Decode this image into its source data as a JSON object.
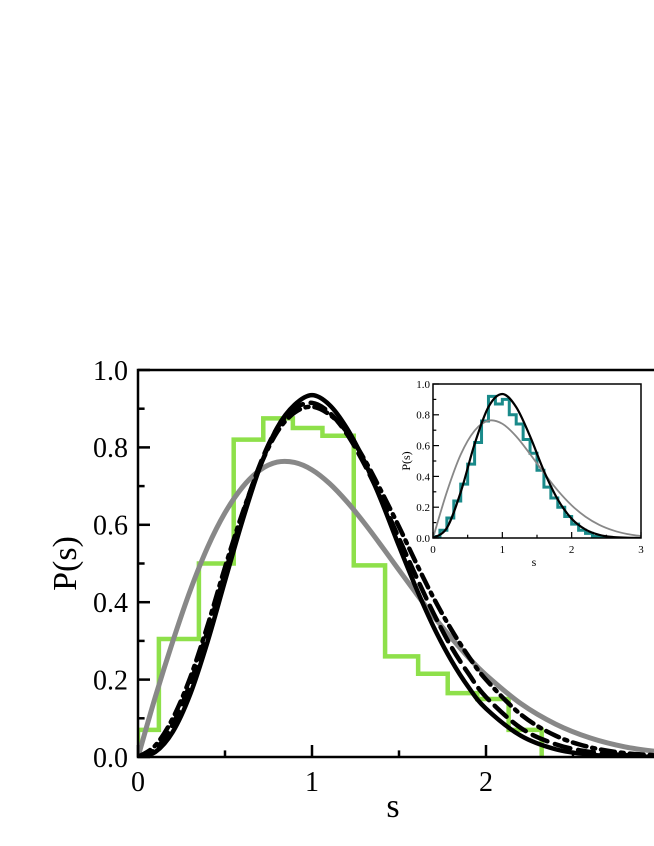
{
  "chart_data": [
    {
      "type": "line",
      "title": "",
      "xlabel": "s",
      "ylabel": "P(s)",
      "xlim": [
        0,
        3
      ],
      "ylim": [
        0,
        1.0
      ],
      "xticks": [
        0,
        1,
        2
      ],
      "xtick_labels": [
        "0",
        "1",
        "2"
      ],
      "yticks": [
        0.0,
        0.2,
        0.4,
        0.6,
        0.8,
        1.0
      ],
      "ytick_labels": [
        "0.0",
        "0.2",
        "0.4",
        "0.6",
        "0.8",
        "1.0"
      ],
      "histogram": {
        "color": "#8ee04a",
        "edges": [
          0,
          0.12,
          0.35,
          0.55,
          0.72,
          0.89,
          1.06,
          1.24,
          1.42,
          1.61,
          1.78,
          1.95,
          2.13,
          2.32
        ],
        "values": [
          0.07,
          0.305,
          0.5,
          0.82,
          0.875,
          0.85,
          0.83,
          0.495,
          0.26,
          0.215,
          0.165,
          0.15,
          0.07
        ]
      },
      "series": [
        {
          "style": "solid-gray",
          "color": "#888888",
          "x": [
            0,
            0.1,
            0.2,
            0.3,
            0.4,
            0.5,
            0.6,
            0.7,
            0.8,
            0.9,
            1.0,
            1.1,
            1.2,
            1.3,
            1.4,
            1.5,
            1.6,
            1.7,
            1.8,
            1.9,
            2.0,
            2.2,
            2.4,
            2.6,
            2.8,
            3.0
          ],
          "y": [
            0,
            0.156,
            0.299,
            0.43,
            0.542,
            0.631,
            0.697,
            0.741,
            0.762,
            0.761,
            0.742,
            0.707,
            0.66,
            0.605,
            0.545,
            0.483,
            0.422,
            0.363,
            0.308,
            0.257,
            0.212,
            0.138,
            0.085,
            0.049,
            0.026,
            0.013
          ]
        },
        {
          "style": "solid-black",
          "color": "#000000",
          "x": [
            0,
            0.1,
            0.2,
            0.3,
            0.4,
            0.5,
            0.6,
            0.7,
            0.8,
            0.9,
            1.0,
            1.1,
            1.2,
            1.3,
            1.4,
            1.5,
            1.6,
            1.7,
            1.8,
            1.9,
            2.0,
            2.2,
            2.4,
            2.6,
            2.8,
            3.0
          ],
          "y": [
            0,
            0.013,
            0.065,
            0.162,
            0.298,
            0.455,
            0.61,
            0.748,
            0.851,
            0.91,
            0.935,
            0.91,
            0.85,
            0.765,
            0.66,
            0.545,
            0.435,
            0.335,
            0.25,
            0.18,
            0.125,
            0.055,
            0.02,
            0.006,
            0.002,
            0.0
          ]
        },
        {
          "style": "dashed-black",
          "color": "#000000",
          "x": [
            0,
            0.1,
            0.2,
            0.3,
            0.4,
            0.5,
            0.6,
            0.7,
            0.8,
            0.9,
            1.0,
            1.1,
            1.2,
            1.3,
            1.4,
            1.5,
            1.6,
            1.7,
            1.8,
            1.9,
            2.0,
            2.2,
            2.4,
            2.6,
            2.8,
            3.0
          ],
          "y": [
            0,
            0.02,
            0.085,
            0.19,
            0.325,
            0.475,
            0.625,
            0.755,
            0.85,
            0.9,
            0.915,
            0.89,
            0.835,
            0.757,
            0.665,
            0.565,
            0.465,
            0.37,
            0.285,
            0.215,
            0.155,
            0.075,
            0.033,
            0.013,
            0.005,
            0.002
          ]
        },
        {
          "style": "dashdot-black",
          "color": "#000000",
          "x": [
            0,
            0.1,
            0.2,
            0.3,
            0.4,
            0.5,
            0.6,
            0.7,
            0.8,
            0.9,
            1.0,
            1.1,
            1.2,
            1.3,
            1.4,
            1.5,
            1.6,
            1.7,
            1.8,
            1.9,
            2.0,
            2.2,
            2.4,
            2.6,
            2.8,
            3.0
          ],
          "y": [
            0,
            0.03,
            0.1,
            0.205,
            0.34,
            0.49,
            0.63,
            0.75,
            0.84,
            0.89,
            0.905,
            0.885,
            0.84,
            0.77,
            0.685,
            0.595,
            0.5,
            0.41,
            0.33,
            0.26,
            0.2,
            0.11,
            0.055,
            0.025,
            0.01,
            0.004
          ]
        }
      ]
    },
    {
      "type": "line",
      "title": "",
      "xlabel": "s",
      "ylabel": "P(s)",
      "xlim": [
        0,
        3
      ],
      "ylim": [
        0,
        1.0
      ],
      "xticks": [
        0,
        1,
        2,
        3
      ],
      "xtick_labels": [
        "0",
        "1",
        "2",
        "3"
      ],
      "yticks": [
        0.0,
        0.2,
        0.4,
        0.6,
        0.8,
        1.0
      ],
      "ytick_labels": [
        "0.0",
        "0.2",
        "0.4",
        "0.6",
        "0.8",
        "1.0"
      ],
      "histogram": {
        "color": "#1a8a8a",
        "edges": [
          0,
          0.1,
          0.2,
          0.3,
          0.4,
          0.5,
          0.6,
          0.7,
          0.8,
          0.9,
          1.0,
          1.1,
          1.2,
          1.3,
          1.4,
          1.5,
          1.6,
          1.7,
          1.8,
          1.9,
          2.0,
          2.1,
          2.2,
          2.3,
          2.4,
          2.5
        ],
        "values": [
          0.01,
          0.05,
          0.13,
          0.24,
          0.35,
          0.48,
          0.62,
          0.76,
          0.92,
          0.87,
          0.9,
          0.8,
          0.74,
          0.64,
          0.55,
          0.44,
          0.33,
          0.26,
          0.2,
          0.14,
          0.09,
          0.05,
          0.03,
          0.01,
          0.005
        ]
      },
      "series": [
        {
          "style": "solid-gray",
          "color": "#888888",
          "x": [
            0,
            0.2,
            0.4,
            0.6,
            0.8,
            1.0,
            1.2,
            1.4,
            1.6,
            1.8,
            2.0,
            2.2,
            2.4,
            2.6,
            2.8,
            3.0
          ],
          "y": [
            0,
            0.299,
            0.542,
            0.697,
            0.762,
            0.742,
            0.66,
            0.545,
            0.422,
            0.308,
            0.212,
            0.138,
            0.085,
            0.049,
            0.026,
            0.013
          ]
        },
        {
          "style": "solid-black",
          "color": "#000000",
          "x": [
            0,
            0.2,
            0.4,
            0.6,
            0.8,
            1.0,
            1.2,
            1.4,
            1.6,
            1.8,
            2.0,
            2.2,
            2.4,
            2.6,
            2.8,
            3.0
          ],
          "y": [
            0,
            0.065,
            0.298,
            0.61,
            0.851,
            0.935,
            0.85,
            0.66,
            0.435,
            0.25,
            0.125,
            0.055,
            0.02,
            0.006,
            0.002,
            0.0
          ]
        }
      ]
    }
  ]
}
